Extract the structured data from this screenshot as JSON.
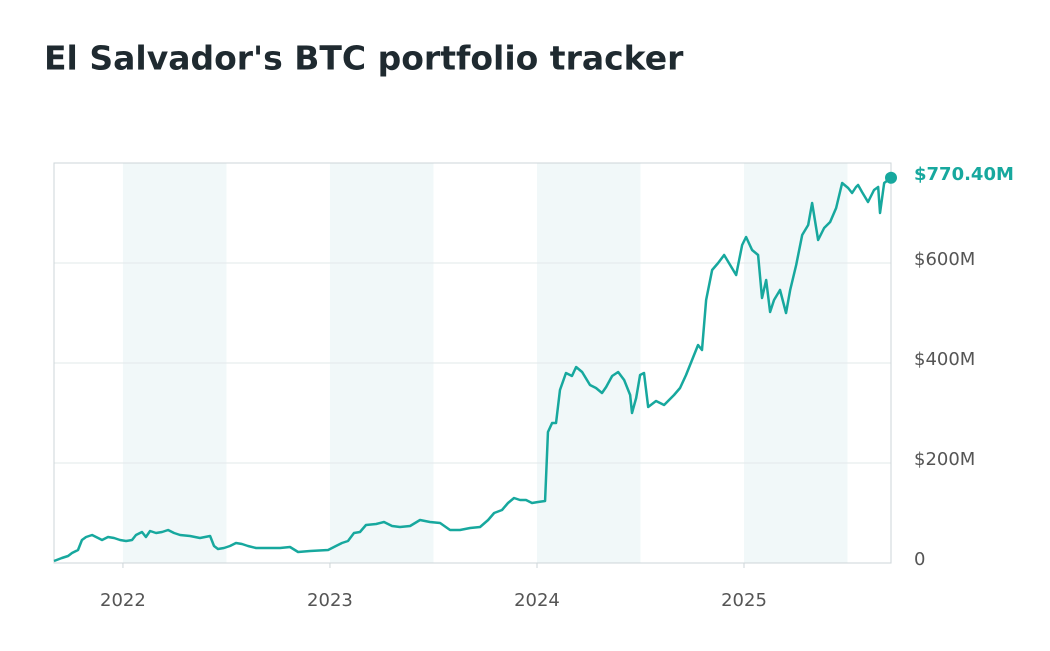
{
  "chart_data": {
    "type": "line",
    "title": "El Salvador's BTC portfolio tracker",
    "end_label": "$770.40M",
    "x": [
      2021.667,
      2021.705,
      2021.735,
      2021.754,
      2021.783,
      2021.802,
      2021.822,
      2021.851,
      2021.88,
      2021.899,
      2021.928,
      2021.957,
      2021.986,
      2022.015,
      2022.044,
      2022.063,
      2022.092,
      2022.111,
      2022.131,
      2022.16,
      2022.189,
      2022.218,
      2022.247,
      2022.276,
      2022.324,
      2022.372,
      2022.421,
      2022.44,
      2022.459,
      2022.488,
      2022.517,
      2022.546,
      2022.575,
      2022.604,
      2022.643,
      2022.691,
      2022.759,
      2022.807,
      2022.846,
      2022.904,
      2022.991,
      2023.029,
      2023.058,
      2023.087,
      2023.116,
      2023.145,
      2023.174,
      2023.223,
      2023.261,
      2023.3,
      2023.338,
      2023.387,
      2023.435,
      2023.483,
      2023.532,
      2023.58,
      2023.628,
      2023.677,
      2023.725,
      2023.764,
      2023.793,
      2023.831,
      2023.86,
      2023.889,
      2023.918,
      2023.947,
      2023.976,
      2024.005,
      2024.039,
      2024.053,
      2024.073,
      2024.092,
      2024.111,
      2024.14,
      2024.169,
      2024.189,
      2024.218,
      2024.256,
      2024.285,
      2024.314,
      2024.334,
      2024.363,
      2024.392,
      2024.421,
      2024.45,
      2024.459,
      2024.479,
      2024.498,
      2024.517,
      2024.537,
      2024.575,
      2024.614,
      2024.662,
      2024.691,
      2024.72,
      2024.749,
      2024.778,
      2024.797,
      2024.817,
      2024.846,
      2024.875,
      2024.904,
      2024.933,
      2024.962,
      2024.991,
      2025.01,
      2025.039,
      2025.068,
      2025.087,
      2025.107,
      2025.126,
      2025.145,
      2025.174,
      2025.203,
      2025.223,
      2025.252,
      2025.281,
      2025.31,
      2025.329,
      2025.358,
      2025.387,
      2025.416,
      2025.445,
      2025.474,
      2025.503,
      2025.522,
      2025.541,
      2025.551,
      2025.57,
      2025.599,
      2025.628,
      2025.648,
      2025.657,
      2025.677,
      2025.71
    ],
    "series": [
      {
        "color": "#17a89e",
        "values": [
          4,
          10,
          14,
          20,
          26,
          46,
          52,
          56,
          50,
          46,
          52,
          50,
          46,
          44,
          46,
          56,
          62,
          52,
          64,
          60,
          62,
          66,
          60,
          56,
          54,
          50,
          54,
          34,
          28,
          30,
          34,
          40,
          38,
          34,
          30,
          30,
          30,
          32,
          22,
          24,
          26,
          34,
          40,
          44,
          60,
          62,
          76,
          78,
          82,
          74,
          72,
          74,
          86,
          82,
          80,
          66,
          66,
          70,
          72,
          86,
          100,
          106,
          120,
          130,
          126,
          126,
          120,
          122,
          124,
          262,
          280,
          280,
          346,
          380,
          374,
          392,
          382,
          356,
          350,
          340,
          352,
          374,
          382,
          366,
          336,
          300,
          330,
          376,
          380,
          312,
          324,
          316,
          336,
          350,
          376,
          406,
          436,
          426,
          526,
          586,
          600,
          616,
          596,
          576,
          636,
          652,
          626,
          616,
          530,
          566,
          502,
          526,
          546,
          500,
          546,
          596,
          656,
          676,
          720,
          646,
          670,
          682,
          710,
          760,
          750,
          740,
          752,
          756,
          742,
          722,
          746,
          752,
          700,
          760,
          770.4
        ]
      }
    ],
    "xlim": [
      2021.667,
      2025.71
    ],
    "xticks": [
      2022,
      2023,
      2024,
      2025
    ],
    "ylim": [
      0,
      800
    ],
    "yticks": [
      0,
      {
        "value": 200,
        "label": "$200M"
      },
      {
        "value": 400,
        "label": "$400M"
      },
      {
        "value": 600,
        "label": "$600M"
      }
    ],
    "grid": true
  }
}
